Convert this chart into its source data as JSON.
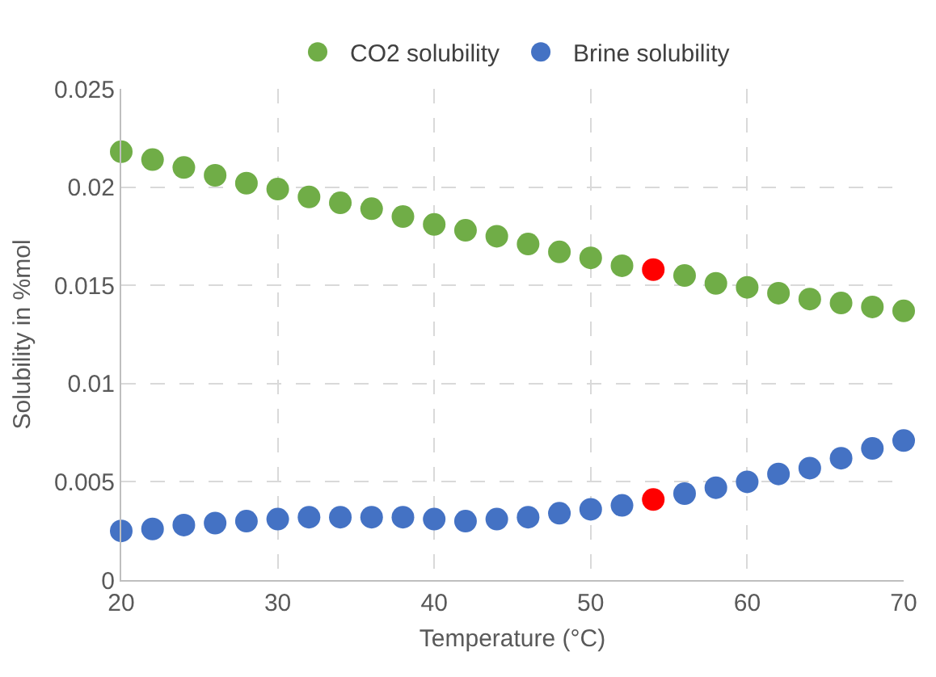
{
  "chart_data": {
    "type": "scatter",
    "xlabel": "Temperature (°C)",
    "ylabel": "Solubility in %mol",
    "x": [
      20,
      22,
      24,
      26,
      28,
      30,
      32,
      34,
      36,
      38,
      40,
      42,
      44,
      46,
      48,
      50,
      52,
      54,
      56,
      58,
      60,
      62,
      64,
      66,
      68,
      70
    ],
    "series": [
      {
        "name": "CO2 solubility",
        "color": "#70ad47",
        "colors": [
          "#70ad47",
          "#70ad47",
          "#70ad47",
          "#70ad47",
          "#70ad47",
          "#70ad47",
          "#70ad47",
          "#70ad47",
          "#70ad47",
          "#70ad47",
          "#70ad47",
          "#70ad47",
          "#70ad47",
          "#70ad47",
          "#70ad47",
          "#70ad47",
          "#70ad47",
          "#ff0000",
          "#70ad47",
          "#70ad47",
          "#70ad47",
          "#70ad47",
          "#70ad47",
          "#70ad47",
          "#70ad47",
          "#70ad47"
        ],
        "values": [
          0.0218,
          0.0214,
          0.021,
          0.0206,
          0.0202,
          0.0199,
          0.0195,
          0.0192,
          0.0189,
          0.0185,
          0.0181,
          0.0178,
          0.0175,
          0.0171,
          0.0167,
          0.0164,
          0.016,
          0.0158,
          0.0155,
          0.0151,
          0.0149,
          0.0146,
          0.0143,
          0.0141,
          0.0139,
          0.0137
        ]
      },
      {
        "name": "Brine solubility",
        "color": "#4472c4",
        "colors": [
          "#4472c4",
          "#4472c4",
          "#4472c4",
          "#4472c4",
          "#4472c4",
          "#4472c4",
          "#4472c4",
          "#4472c4",
          "#4472c4",
          "#4472c4",
          "#4472c4",
          "#4472c4",
          "#4472c4",
          "#4472c4",
          "#4472c4",
          "#4472c4",
          "#4472c4",
          "#ff0000",
          "#4472c4",
          "#4472c4",
          "#4472c4",
          "#4472c4",
          "#4472c4",
          "#4472c4",
          "#4472c4",
          "#4472c4"
        ],
        "values": [
          0.0025,
          0.0026,
          0.0028,
          0.0029,
          0.003,
          0.0031,
          0.0032,
          0.0032,
          0.0032,
          0.0032,
          0.0031,
          0.003,
          0.0031,
          0.0032,
          0.0034,
          0.0036,
          0.0038,
          0.0041,
          0.0044,
          0.0047,
          0.005,
          0.0054,
          0.0057,
          0.0062,
          0.0067,
          0.0071
        ]
      }
    ],
    "xlim": [
      20,
      70
    ],
    "xticks": [
      20,
      30,
      40,
      50,
      60,
      70
    ],
    "ylim": [
      0,
      0.025
    ],
    "yticks": [
      0,
      0.005,
      0.01,
      0.015,
      0.02,
      0.025
    ],
    "grid": true,
    "legend": "top",
    "marker": "circle"
  }
}
